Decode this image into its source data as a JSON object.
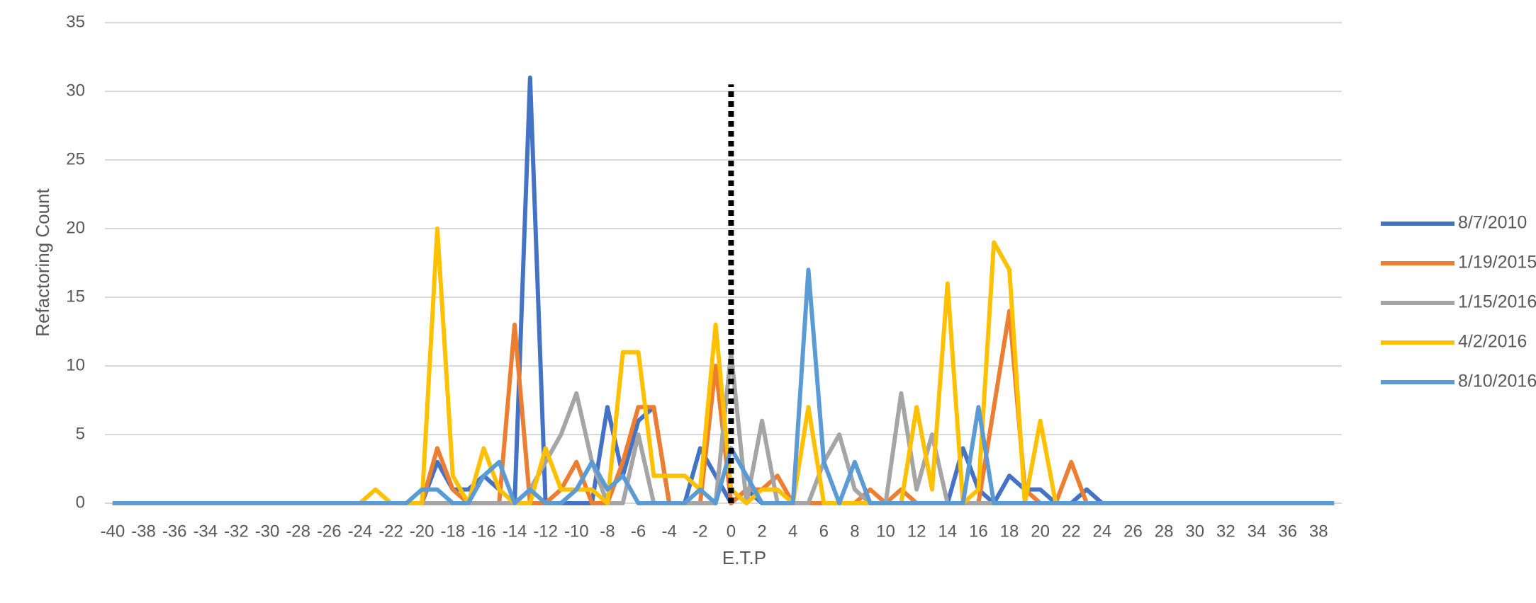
{
  "chart_data": {
    "type": "line",
    "x_label": "E.T.P",
    "y_label": "Refactoring Count",
    "x": [
      -40,
      -39,
      -38,
      -37,
      -36,
      -35,
      -34,
      -33,
      -32,
      -31,
      -30,
      -29,
      -28,
      -27,
      -26,
      -25,
      -24,
      -23,
      -22,
      -21,
      -20,
      -19,
      -18,
      -17,
      -16,
      -15,
      -14,
      -13,
      -12,
      -11,
      -10,
      -9,
      -8,
      -7,
      -6,
      -5,
      -4,
      -3,
      -2,
      -1,
      0,
      1,
      2,
      3,
      4,
      5,
      6,
      7,
      8,
      9,
      10,
      11,
      12,
      13,
      14,
      15,
      16,
      17,
      18,
      19,
      20,
      21,
      22,
      23,
      24,
      25,
      26,
      27,
      28,
      29,
      30,
      31,
      32,
      33,
      34,
      35,
      36,
      37,
      38,
      39
    ],
    "xlim": [
      -40.5,
      39.5
    ],
    "xticks": [
      -40,
      -38,
      -36,
      -34,
      -32,
      -30,
      -28,
      -26,
      -24,
      -22,
      -20,
      -18,
      -16,
      -14,
      -12,
      -10,
      -8,
      -6,
      -4,
      -2,
      0,
      2,
      4,
      6,
      8,
      10,
      12,
      14,
      16,
      18,
      20,
      22,
      24,
      26,
      28,
      30,
      32,
      34,
      36,
      38
    ],
    "ylim": [
      0,
      35
    ],
    "yticks": [
      0,
      5,
      10,
      15,
      20,
      25,
      30,
      35
    ],
    "grid": true,
    "legend": "right",
    "vline": {
      "x": 0,
      "top": 30.5,
      "color": "#000000"
    },
    "series": [
      {
        "name": "8/7/2010",
        "color": "#4472C4",
        "values": [
          0,
          0,
          0,
          0,
          0,
          0,
          0,
          0,
          0,
          0,
          0,
          0,
          0,
          0,
          0,
          0,
          0,
          0,
          0,
          0,
          0,
          3,
          1,
          1,
          2,
          1,
          0,
          31,
          0,
          0,
          0,
          0,
          7,
          2,
          6,
          7,
          0,
          0,
          4,
          2,
          0,
          1,
          0,
          0,
          0,
          0,
          0,
          0,
          0,
          0,
          0,
          0,
          0,
          0,
          0,
          4,
          1,
          0,
          2,
          1,
          1,
          0,
          0,
          1,
          0,
          0,
          0,
          0,
          0,
          0,
          0,
          0,
          0,
          0,
          0,
          0,
          0,
          0,
          0,
          0
        ]
      },
      {
        "name": "1/19/2015",
        "color": "#ED7D31",
        "values": [
          0,
          0,
          0,
          0,
          0,
          0,
          0,
          0,
          0,
          0,
          0,
          0,
          0,
          0,
          0,
          0,
          0,
          0,
          0,
          0,
          0,
          4,
          1,
          0,
          0,
          0,
          13,
          0,
          0,
          1,
          3,
          0,
          0,
          3,
          7,
          7,
          0,
          0,
          0,
          10,
          0,
          1,
          1,
          2,
          0,
          0,
          0,
          0,
          0,
          1,
          0,
          1,
          0,
          0,
          0,
          0,
          0,
          7,
          14,
          1,
          0,
          0,
          3,
          0,
          0,
          0,
          0,
          0,
          0,
          0,
          0,
          0,
          0,
          0,
          0,
          0,
          0,
          0,
          0,
          0
        ]
      },
      {
        "name": "1/15/2016",
        "color": "#A5A5A5",
        "values": [
          0,
          0,
          0,
          0,
          0,
          0,
          0,
          0,
          0,
          0,
          0,
          0,
          0,
          0,
          0,
          0,
          0,
          0,
          0,
          0,
          0,
          0,
          0,
          0,
          0,
          0,
          0,
          1,
          3,
          5,
          8,
          3,
          0,
          0,
          5,
          0,
          0,
          0,
          0,
          0,
          11,
          0,
          6,
          0,
          0,
          0,
          3,
          5,
          1,
          0,
          0,
          8,
          1,
          5,
          0,
          0,
          0,
          0,
          0,
          0,
          0,
          0,
          0,
          0,
          0,
          0,
          0,
          0,
          0,
          0,
          0,
          0,
          0,
          0,
          0,
          0,
          0,
          0,
          0,
          0
        ]
      },
      {
        "name": "4/2/2016",
        "color": "#FFC000",
        "values": [
          0,
          0,
          0,
          0,
          0,
          0,
          0,
          0,
          0,
          0,
          0,
          0,
          0,
          0,
          0,
          0,
          0,
          1,
          0,
          0,
          0,
          20,
          2,
          0,
          4,
          1,
          0,
          0,
          4,
          1,
          1,
          1,
          0,
          11,
          11,
          2,
          2,
          2,
          1,
          13,
          1,
          0,
          1,
          1,
          0,
          7,
          0,
          0,
          0,
          0,
          0,
          0,
          7,
          1,
          16,
          0,
          1,
          19,
          17,
          0,
          6,
          0,
          0,
          0,
          0,
          0,
          0,
          0,
          0,
          0,
          0,
          0,
          0,
          0,
          0,
          0,
          0,
          0,
          0,
          0
        ]
      },
      {
        "name": "8/10/2016",
        "color": "#5B9BD5",
        "values": [
          0,
          0,
          0,
          0,
          0,
          0,
          0,
          0,
          0,
          0,
          0,
          0,
          0,
          0,
          0,
          0,
          0,
          0,
          0,
          0,
          1,
          1,
          0,
          0,
          2,
          3,
          0,
          1,
          0,
          0,
          1,
          3,
          1,
          2,
          0,
          0,
          0,
          0,
          1,
          0,
          4,
          2,
          0,
          0,
          0,
          17,
          3,
          0,
          3,
          0,
          0,
          0,
          0,
          0,
          0,
          0,
          7,
          0,
          0,
          0,
          0,
          0,
          0,
          0,
          0,
          0,
          0,
          0,
          0,
          0,
          0,
          0,
          0,
          0,
          0,
          0,
          0,
          0,
          0,
          0
        ]
      }
    ]
  }
}
